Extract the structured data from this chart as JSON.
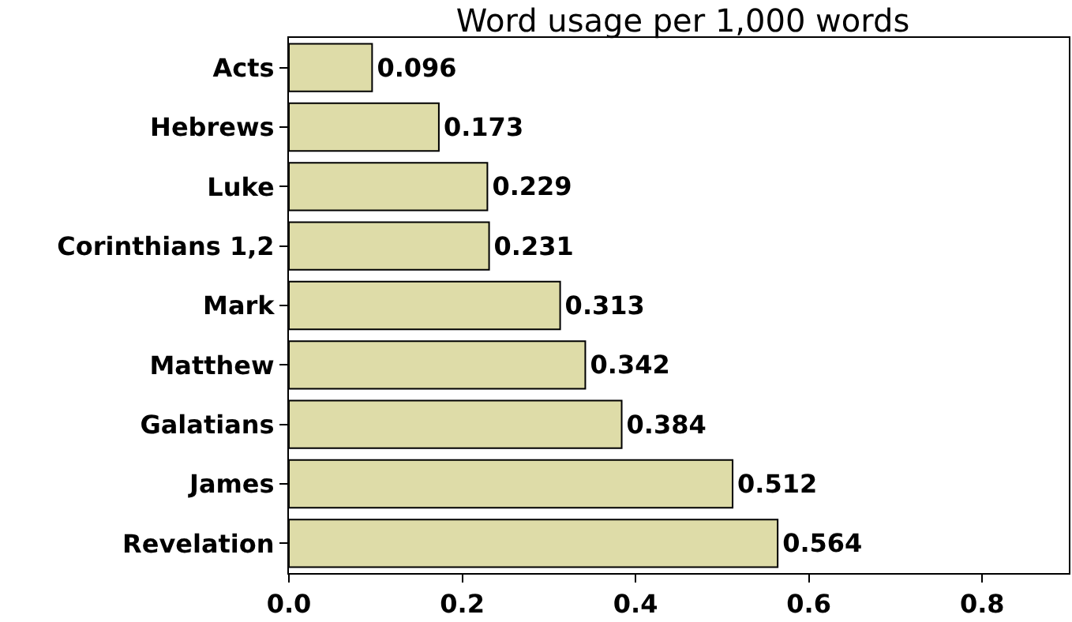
{
  "chart_data": {
    "type": "bar",
    "orientation": "horizontal",
    "title": "Word usage per 1,000 words",
    "categories": [
      "Acts",
      "Hebrews",
      "Luke",
      "Corinthians 1,2",
      "Mark",
      "Matthew",
      "Galatians",
      "James",
      "Revelation"
    ],
    "values": [
      0.096,
      0.173,
      0.229,
      0.231,
      0.313,
      0.342,
      0.384,
      0.512,
      0.564
    ],
    "color": "#dedca8",
    "xlim": [
      0,
      0.9
    ],
    "xticks": [
      {
        "value": 0,
        "label": "0.0"
      },
      {
        "value": 0.2,
        "label": "0.2"
      },
      {
        "value": 0.4,
        "label": "0.4"
      },
      {
        "value": 0.6,
        "label": "0.6"
      },
      {
        "value": 0.8,
        "label": "0.8"
      }
    ],
    "data_labels": true
  }
}
